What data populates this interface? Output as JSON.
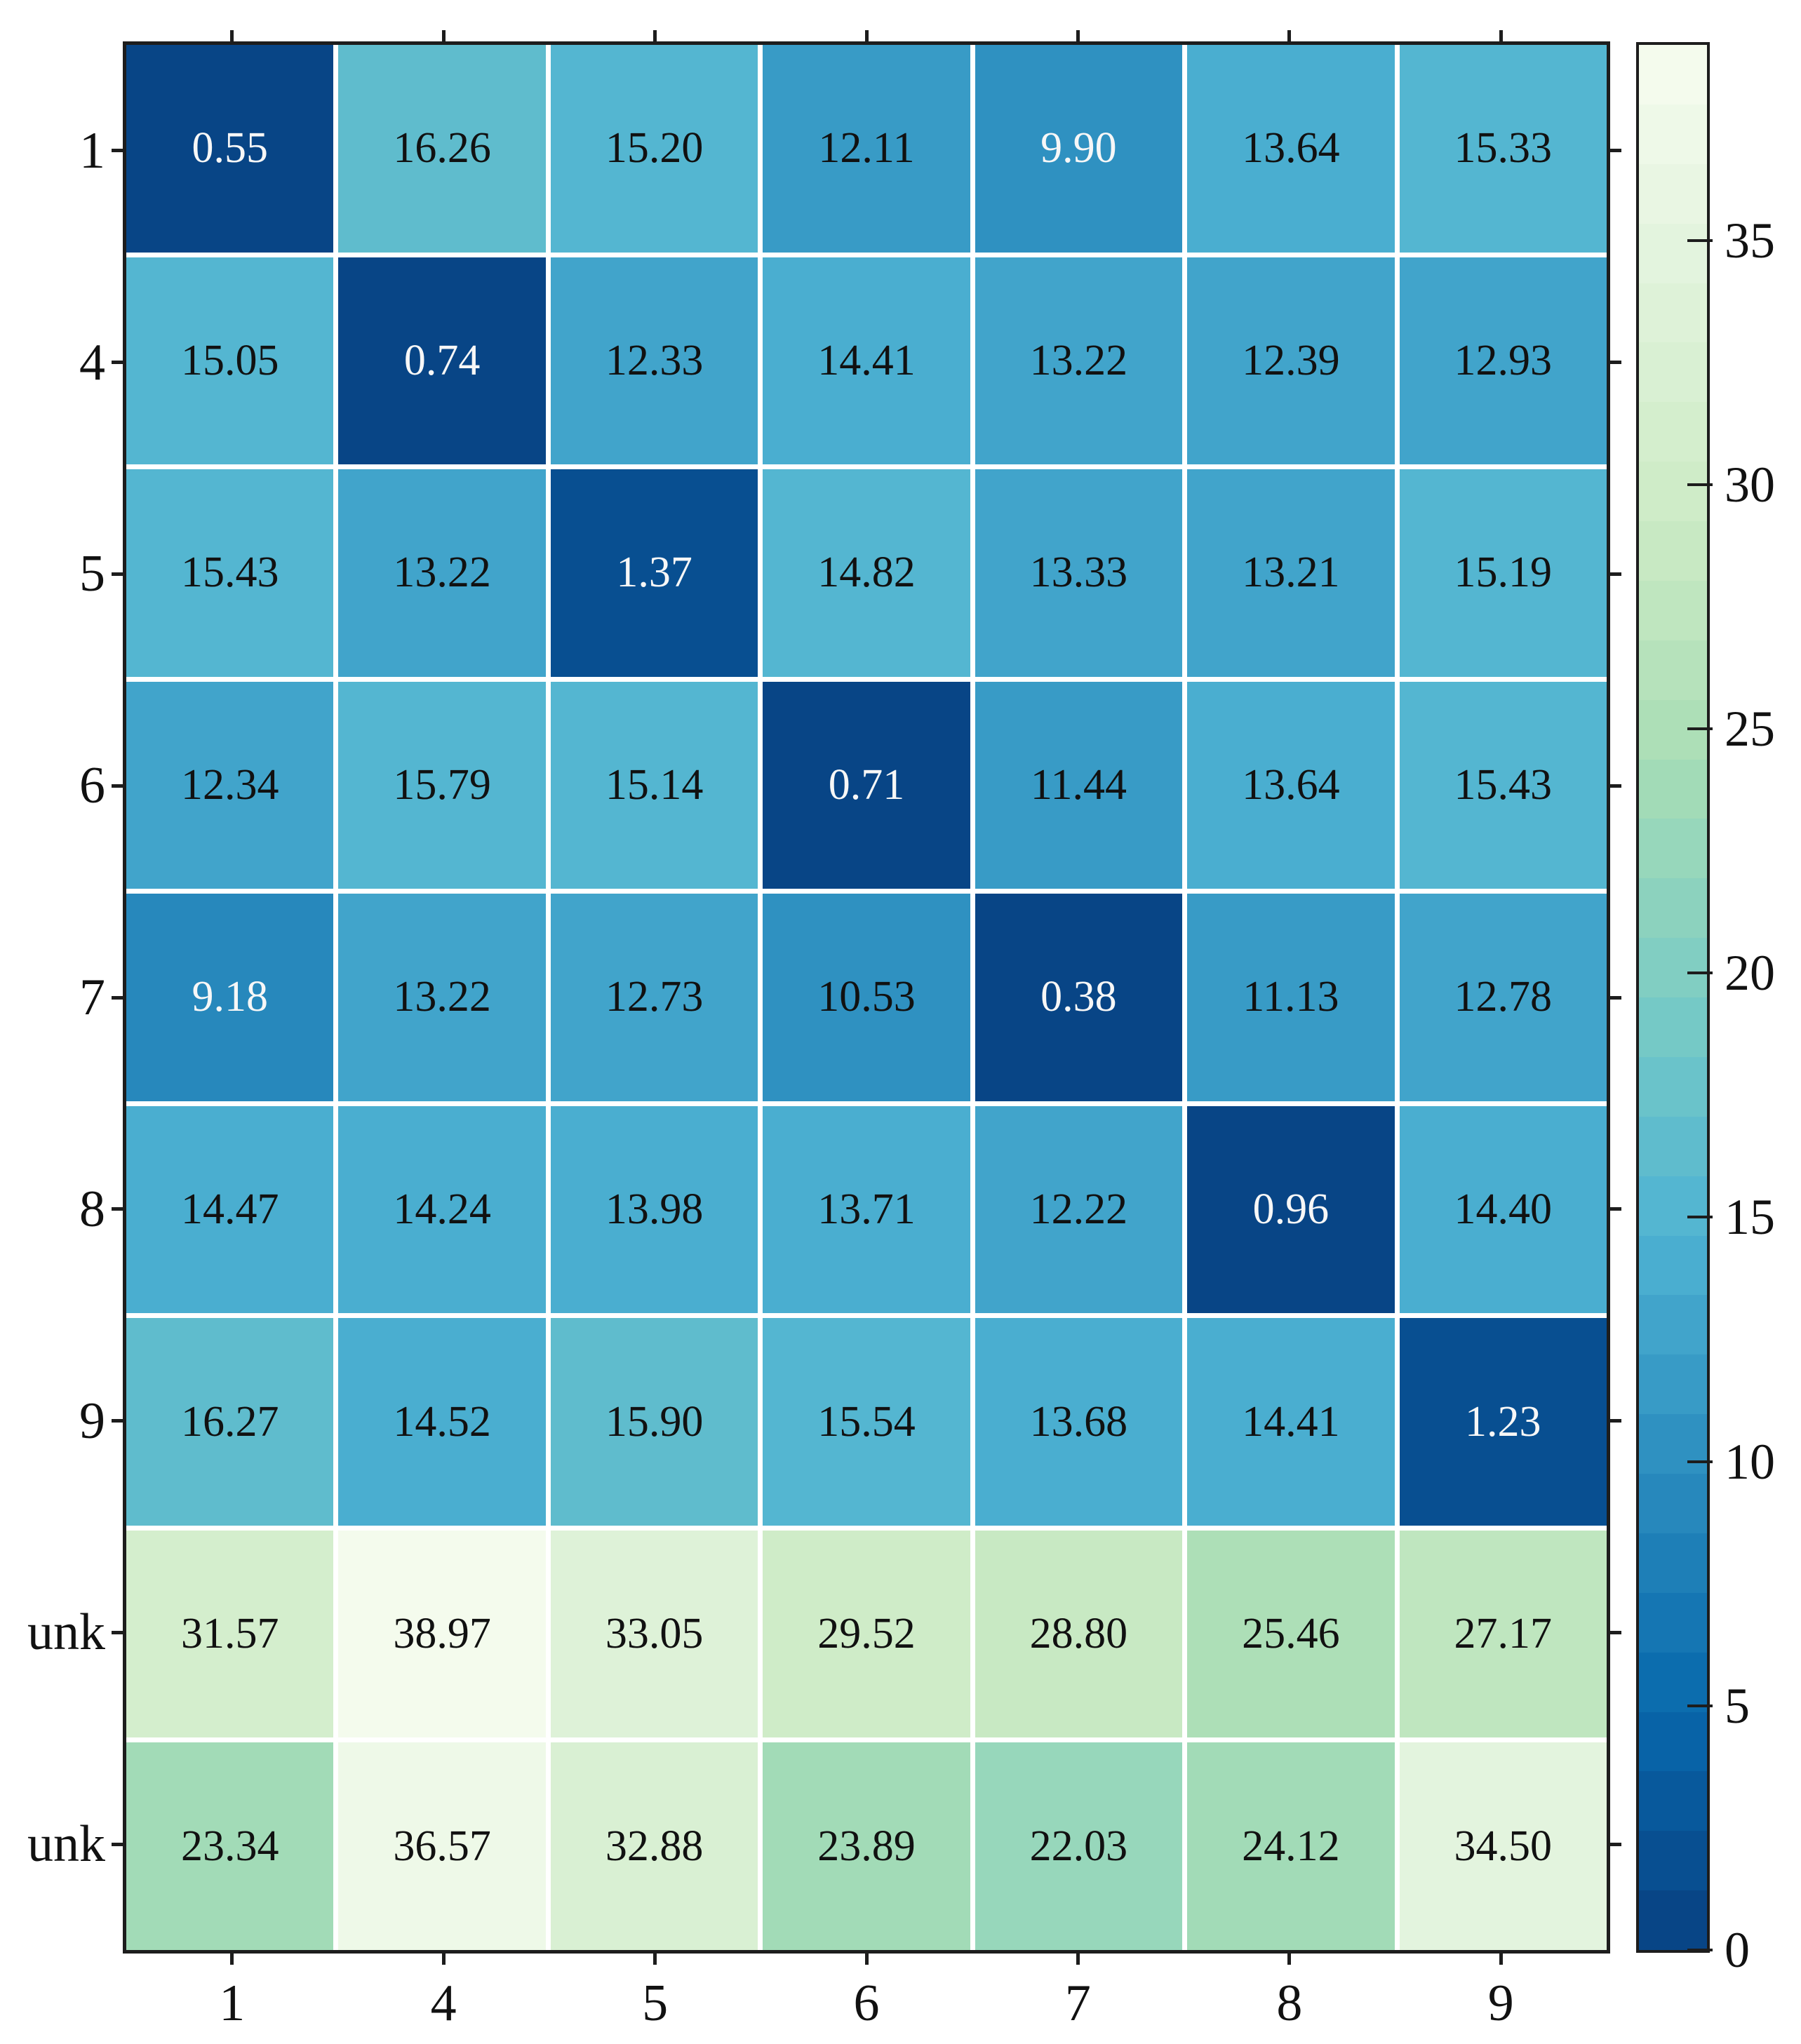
{
  "chart_data": {
    "type": "heatmap",
    "title": "",
    "xlabel": "",
    "ylabel": "",
    "x_labels": [
      "1",
      "4",
      "5",
      "6",
      "7",
      "8",
      "9"
    ],
    "y_labels": [
      "1",
      "4",
      "5",
      "6",
      "7",
      "8",
      "9",
      "unk",
      "unk"
    ],
    "rows": [
      [
        0.55,
        16.26,
        15.2,
        12.11,
        9.9,
        13.64,
        15.33
      ],
      [
        15.05,
        0.74,
        12.33,
        14.41,
        13.22,
        12.39,
        12.93
      ],
      [
        15.43,
        13.22,
        1.37,
        14.82,
        13.33,
        13.21,
        15.19
      ],
      [
        12.34,
        15.79,
        15.14,
        0.71,
        11.44,
        13.64,
        15.43
      ],
      [
        9.18,
        13.22,
        12.73,
        10.53,
        0.38,
        11.13,
        12.78
      ],
      [
        14.47,
        14.24,
        13.98,
        13.71,
        12.22,
        0.96,
        14.4
      ],
      [
        16.27,
        14.52,
        15.9,
        15.54,
        13.68,
        14.41,
        1.23
      ],
      [
        31.57,
        38.97,
        33.05,
        29.52,
        28.8,
        25.46,
        27.17
      ],
      [
        23.34,
        36.57,
        32.88,
        23.89,
        22.03,
        24.12,
        34.5
      ]
    ],
    "value_decimals": 2,
    "colormap": "GnBu_r",
    "colormap_anchors": [
      "#F7FCF0",
      "#E0F3DB",
      "#CCEBC5",
      "#A8DDB5",
      "#7BCCC4",
      "#4EB3D3",
      "#2B8CBE",
      "#0868AC",
      "#084081"
    ],
    "color_levels": 32,
    "vmin": 0,
    "vmax": 39,
    "white_text_threshold": 10,
    "grid_on": true,
    "grid_line_color": "#ffffff",
    "axis_color": "#1d1d1d",
    "text_color_dark": "#111111",
    "text_color_light": "#f7f7f7",
    "legend": "none",
    "colorbar": {
      "position": "right",
      "tick_labels": [
        "0",
        "5",
        "10",
        "15",
        "20",
        "25",
        "30",
        "35"
      ],
      "tick_values": [
        0,
        5,
        10,
        15,
        20,
        25,
        30,
        35
      ]
    }
  }
}
